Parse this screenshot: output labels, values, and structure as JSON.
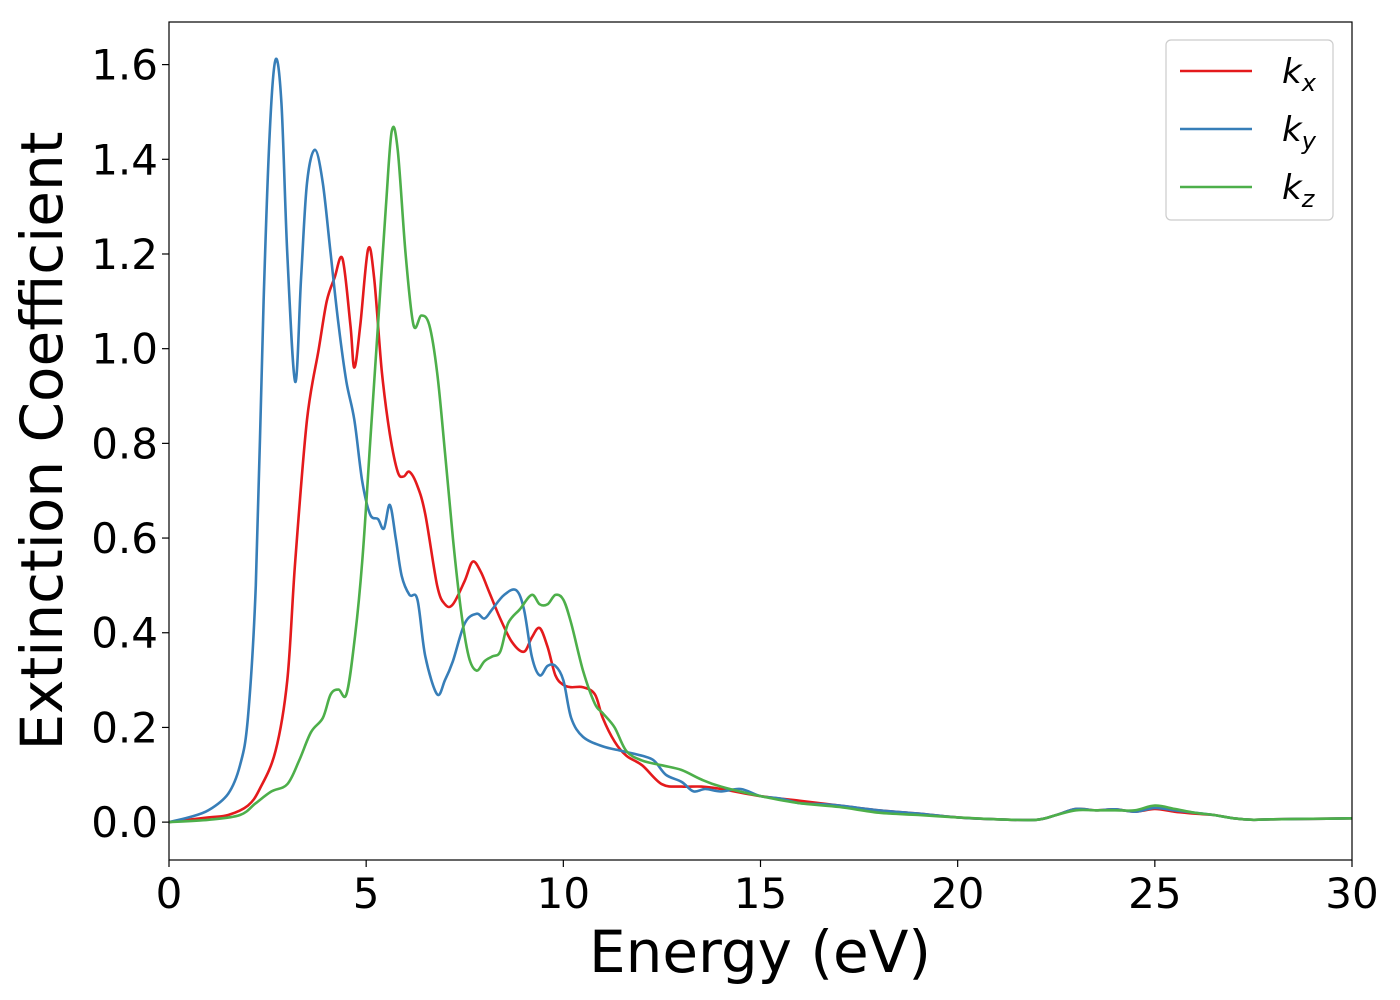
{
  "chart_data": {
    "type": "line",
    "title": "",
    "xlabel": "Energy (eV)",
    "ylabel": "Extinction Coefficient",
    "xlim": [
      0,
      30
    ],
    "ylim": [
      -0.08,
      1.69
    ],
    "xticks": [
      0,
      5,
      10,
      15,
      20,
      25,
      30
    ],
    "xtick_labels": [
      "0",
      "5",
      "10",
      "15",
      "20",
      "25",
      "30"
    ],
    "yticks": [
      0.0,
      0.2,
      0.4,
      0.6,
      0.8,
      1.0,
      1.2,
      1.4,
      1.6
    ],
    "ytick_labels": [
      "0.0",
      "0.2",
      "0.4",
      "0.6",
      "0.8",
      "1.0",
      "1.2",
      "1.4",
      "1.6"
    ],
    "grid": false,
    "legend_position": "top-right",
    "series": [
      {
        "name": "k_x",
        "label_base": "k",
        "label_sub": "x",
        "color": "#e41a1c",
        "x": [
          0,
          1,
          1.5,
          2,
          2.3,
          2.7,
          3.0,
          3.2,
          3.5,
          3.8,
          4.0,
          4.2,
          4.4,
          4.6,
          4.7,
          4.85,
          5.05,
          5.2,
          5.4,
          5.6,
          5.8,
          5.95,
          6.1,
          6.3,
          6.5,
          6.8,
          7.0,
          7.2,
          7.5,
          7.7,
          7.9,
          8.1,
          8.4,
          8.7,
          9.0,
          9.2,
          9.4,
          9.6,
          9.8,
          10.0,
          10.2,
          10.5,
          10.8,
          11.0,
          11.3,
          11.6,
          12.0,
          12.5,
          13.0,
          13.5,
          14.0,
          15.0,
          16.0,
          17.0,
          18.0,
          19.0,
          20.0,
          21.0,
          22.0,
          22.5,
          23.0,
          23.5,
          24.0,
          24.5,
          25.0,
          25.5,
          26.0,
          26.5,
          27.0,
          27.5,
          28.0,
          29.0,
          30.0
        ],
        "y": [
          0.0,
          0.01,
          0.015,
          0.035,
          0.07,
          0.15,
          0.3,
          0.55,
          0.85,
          1.0,
          1.1,
          1.15,
          1.19,
          1.05,
          0.96,
          1.05,
          1.21,
          1.15,
          0.95,
          0.82,
          0.74,
          0.73,
          0.74,
          0.71,
          0.65,
          0.5,
          0.46,
          0.46,
          0.51,
          0.55,
          0.53,
          0.49,
          0.43,
          0.38,
          0.36,
          0.39,
          0.41,
          0.37,
          0.31,
          0.29,
          0.285,
          0.285,
          0.27,
          0.22,
          0.17,
          0.14,
          0.12,
          0.08,
          0.075,
          0.075,
          0.07,
          0.055,
          0.045,
          0.035,
          0.025,
          0.018,
          0.01,
          0.006,
          0.005,
          0.015,
          0.028,
          0.025,
          0.027,
          0.022,
          0.028,
          0.022,
          0.018,
          0.015,
          0.008,
          0.005,
          0.006,
          0.007,
          0.008
        ]
      },
      {
        "name": "k_y",
        "label_base": "k",
        "label_sub": "y",
        "color": "#377eb8",
        "x": [
          0,
          0.5,
          1.0,
          1.5,
          1.8,
          2.0,
          2.2,
          2.4,
          2.55,
          2.7,
          2.85,
          3.0,
          3.2,
          3.35,
          3.5,
          3.7,
          3.9,
          4.1,
          4.3,
          4.5,
          4.7,
          4.9,
          5.1,
          5.3,
          5.45,
          5.6,
          5.75,
          5.9,
          6.1,
          6.3,
          6.5,
          6.8,
          7.0,
          7.2,
          7.5,
          7.8,
          8.0,
          8.2,
          8.5,
          8.8,
          9.0,
          9.2,
          9.4,
          9.6,
          9.8,
          10.0,
          10.2,
          10.5,
          11.0,
          11.5,
          12.0,
          12.3,
          12.6,
          13.0,
          13.3,
          13.6,
          14.0,
          14.5,
          15.0,
          15.5,
          16.0,
          16.5,
          17.0,
          18.0,
          19.0,
          20.0,
          21.0,
          22.0,
          22.5,
          23.0,
          23.5,
          24.0,
          24.5,
          25.0,
          25.5,
          26.0,
          26.5,
          27.0,
          27.5,
          28.0,
          29.0,
          30.0
        ],
        "y": [
          0.0,
          0.01,
          0.025,
          0.06,
          0.12,
          0.22,
          0.5,
          1.1,
          1.45,
          1.61,
          1.52,
          1.2,
          0.93,
          1.15,
          1.35,
          1.42,
          1.35,
          1.2,
          1.05,
          0.93,
          0.85,
          0.72,
          0.65,
          0.64,
          0.62,
          0.67,
          0.6,
          0.52,
          0.48,
          0.47,
          0.35,
          0.27,
          0.3,
          0.34,
          0.42,
          0.44,
          0.43,
          0.45,
          0.48,
          0.49,
          0.45,
          0.35,
          0.31,
          0.33,
          0.33,
          0.3,
          0.22,
          0.18,
          0.16,
          0.15,
          0.14,
          0.13,
          0.1,
          0.085,
          0.065,
          0.07,
          0.065,
          0.07,
          0.055,
          0.05,
          0.04,
          0.038,
          0.035,
          0.025,
          0.018,
          0.01,
          0.006,
          0.005,
          0.015,
          0.028,
          0.025,
          0.027,
          0.022,
          0.03,
          0.025,
          0.02,
          0.015,
          0.008,
          0.005,
          0.006,
          0.007,
          0.008
        ]
      },
      {
        "name": "k_z",
        "label_base": "k",
        "label_sub": "z",
        "color": "#4daf4a",
        "x": [
          0,
          1.0,
          1.8,
          2.2,
          2.6,
          3.0,
          3.3,
          3.6,
          3.9,
          4.1,
          4.3,
          4.5,
          4.7,
          4.9,
          5.1,
          5.3,
          5.5,
          5.65,
          5.8,
          6.0,
          6.2,
          6.4,
          6.6,
          6.8,
          7.0,
          7.2,
          7.4,
          7.6,
          7.8,
          8.0,
          8.2,
          8.4,
          8.6,
          8.9,
          9.2,
          9.4,
          9.6,
          9.8,
          10.0,
          10.2,
          10.5,
          10.8,
          11.0,
          11.3,
          11.6,
          12.0,
          12.5,
          13.0,
          13.5,
          14.0,
          15.0,
          16.0,
          17.0,
          18.0,
          19.0,
          20.0,
          21.0,
          22.0,
          22.5,
          23.0,
          23.5,
          24.0,
          24.5,
          25.0,
          25.5,
          26.0,
          26.5,
          27.0,
          27.5,
          28.0,
          29.0,
          30.0
        ],
        "y": [
          0.0,
          0.005,
          0.015,
          0.04,
          0.065,
          0.08,
          0.13,
          0.19,
          0.22,
          0.27,
          0.28,
          0.27,
          0.38,
          0.55,
          0.8,
          1.05,
          1.3,
          1.46,
          1.42,
          1.2,
          1.05,
          1.07,
          1.05,
          0.95,
          0.78,
          0.6,
          0.45,
          0.35,
          0.32,
          0.34,
          0.35,
          0.36,
          0.42,
          0.45,
          0.48,
          0.46,
          0.46,
          0.48,
          0.47,
          0.42,
          0.32,
          0.25,
          0.23,
          0.2,
          0.15,
          0.13,
          0.12,
          0.11,
          0.09,
          0.075,
          0.055,
          0.04,
          0.032,
          0.02,
          0.015,
          0.01,
          0.006,
          0.005,
          0.015,
          0.025,
          0.025,
          0.025,
          0.025,
          0.035,
          0.028,
          0.02,
          0.015,
          0.008,
          0.005,
          0.006,
          0.007,
          0.008
        ]
      }
    ]
  }
}
